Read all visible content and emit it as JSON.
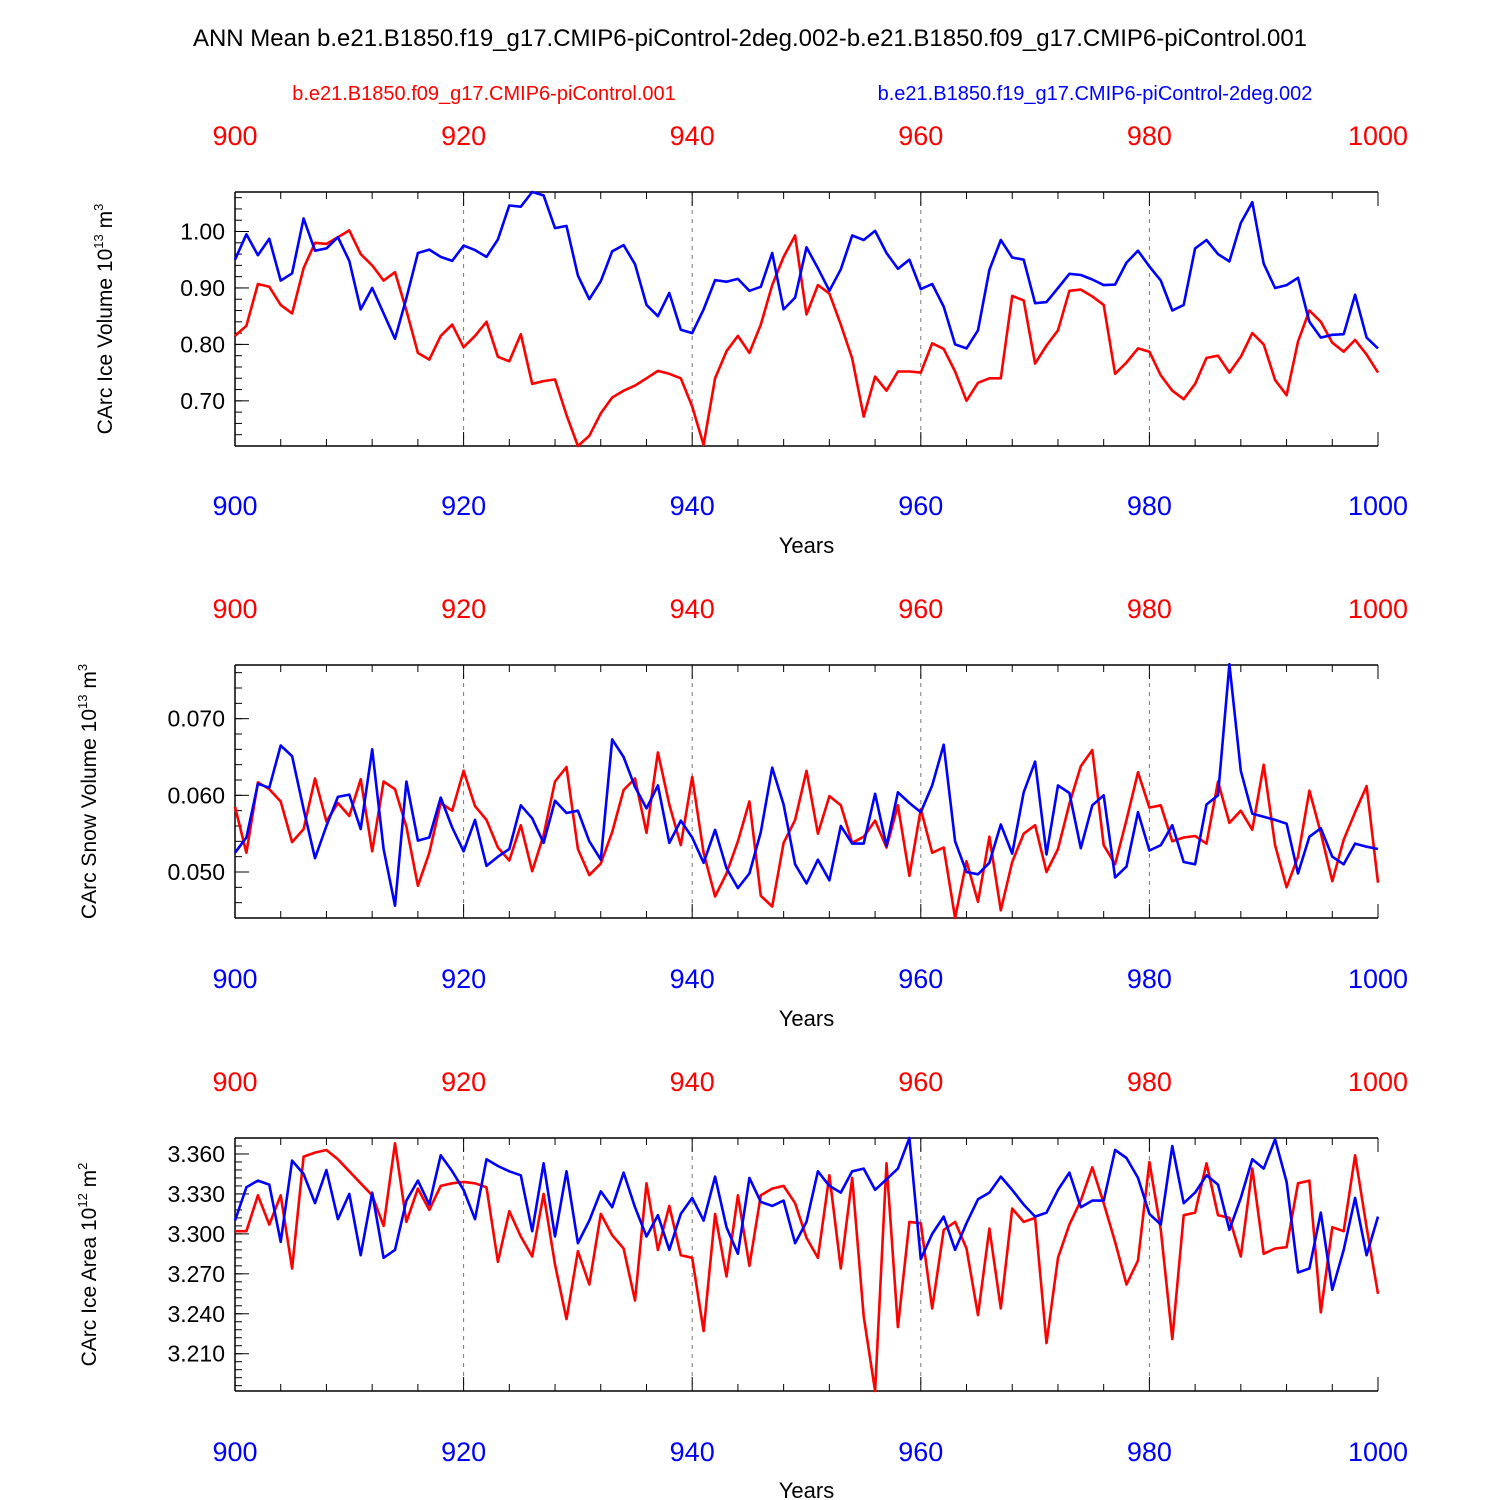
{
  "title": "ANN Mean b.e21.B1850.f19_g17.CMIP6-piControl-2deg.002-b.e21.B1850.f09_g17.CMIP6-piControl.001",
  "legend": {
    "red_label": "b.e21.B1850.f09_g17.CMIP6-piControl.001",
    "blue_label": "b.e21.B1850.f19_g17.CMIP6-piControl-2deg.002"
  },
  "colors": {
    "red": "#ff0000",
    "blue": "#0000ff",
    "axis": "#000000",
    "grid": "#777777"
  },
  "chart_data": [
    {
      "type": "line",
      "ylabel": "CArc Ice Volume 10",
      "ylabel_exp": "13",
      "ylabel_unit": " m",
      "ylabel_unit_exp": "3",
      "xlabel": "Years",
      "xlim": [
        900,
        1000
      ],
      "ylim": [
        0.62,
        1.07
      ],
      "x_ticks": [
        "900",
        "920",
        "940",
        "960",
        "980",
        "1000"
      ],
      "y_ticks": [
        "1.00",
        "0.90",
        "0.80",
        "0.70"
      ],
      "x_start": 900,
      "series": [
        {
          "name": "b.e21.B1850.f09_g17.CMIP6-piControl.001",
          "color": "red",
          "values": [
            0.815,
            0.833,
            0.907,
            0.902,
            0.87,
            0.855,
            0.935,
            0.98,
            0.978,
            0.99,
            1.002,
            0.96,
            0.94,
            0.913,
            0.928,
            0.86,
            0.785,
            0.773,
            0.815,
            0.835,
            0.795,
            0.815,
            0.84,
            0.778,
            0.77,
            0.818,
            0.73,
            0.735,
            0.738,
            0.675,
            0.62,
            0.638,
            0.678,
            0.706,
            0.718,
            0.727,
            0.74,
            0.753,
            0.748,
            0.74,
            0.69,
            0.622,
            0.74,
            0.788,
            0.815,
            0.785,
            0.835,
            0.905,
            0.955,
            0.993,
            0.853,
            0.905,
            0.89,
            0.835,
            0.775,
            0.672,
            0.743,
            0.718,
            0.752,
            0.752,
            0.75,
            0.802,
            0.792,
            0.752,
            0.7,
            0.732,
            0.74,
            0.74,
            0.886,
            0.878,
            0.766,
            0.798,
            0.825,
            0.895,
            0.897,
            0.885,
            0.87,
            0.748,
            0.768,
            0.793,
            0.787,
            0.745,
            0.718,
            0.703,
            0.73,
            0.776,
            0.78,
            0.75,
            0.778,
            0.82,
            0.8,
            0.737,
            0.71,
            0.805,
            0.86,
            0.84,
            0.803,
            0.787,
            0.808,
            0.782,
            0.75
          ]
        },
        {
          "name": "b.e21.B1850.f19_g17.CMIP6-piControl-2deg.002",
          "color": "blue",
          "values": [
            0.95,
            0.995,
            0.958,
            0.987,
            0.913,
            0.926,
            1.023,
            0.966,
            0.97,
            0.99,
            0.948,
            0.862,
            0.9,
            0.855,
            0.81,
            0.882,
            0.962,
            0.968,
            0.955,
            0.948,
            0.975,
            0.967,
            0.955,
            0.986,
            1.046,
            1.044,
            1.07,
            1.064,
            1.006,
            1.01,
            0.922,
            0.88,
            0.912,
            0.965,
            0.976,
            0.942,
            0.87,
            0.85,
            0.891,
            0.826,
            0.82,
            0.862,
            0.914,
            0.911,
            0.916,
            0.895,
            0.902,
            0.962,
            0.862,
            0.883,
            0.972,
            0.935,
            0.895,
            0.933,
            0.993,
            0.985,
            1.001,
            0.962,
            0.934,
            0.95,
            0.898,
            0.907,
            0.867,
            0.8,
            0.793,
            0.825,
            0.932,
            0.985,
            0.954,
            0.95,
            0.873,
            0.875,
            0.9,
            0.925,
            0.923,
            0.915,
            0.905,
            0.906,
            0.945,
            0.966,
            0.938,
            0.913,
            0.86,
            0.87,
            0.97,
            0.985,
            0.96,
            0.947,
            1.015,
            1.052,
            0.943,
            0.9,
            0.905,
            0.918,
            0.84,
            0.812,
            0.817,
            0.818,
            0.888,
            0.812,
            0.793
          ]
        }
      ]
    },
    {
      "type": "line",
      "ylabel": "CArc Snow Volume 10",
      "ylabel_exp": "13",
      "ylabel_unit": " m",
      "ylabel_unit_exp": "3",
      "xlabel": "Years",
      "xlim": [
        900,
        1000
      ],
      "ylim": [
        0.044,
        0.077
      ],
      "x_ticks": [
        "900",
        "920",
        "940",
        "960",
        "980",
        "1000"
      ],
      "y_ticks": [
        "0.070",
        "0.060",
        "0.050"
      ],
      "x_start": 900,
      "series": [
        {
          "name": "b.e21.B1850.f09_g17.CMIP6-piControl.001",
          "color": "red",
          "values": [
            0.0585,
            0.0525,
            0.0617,
            0.0608,
            0.0592,
            0.0539,
            0.0556,
            0.0622,
            0.0566,
            0.059,
            0.0573,
            0.0621,
            0.0527,
            0.0618,
            0.0608,
            0.0559,
            0.0482,
            0.0525,
            0.059,
            0.058,
            0.0632,
            0.0586,
            0.0568,
            0.0532,
            0.0515,
            0.0561,
            0.0501,
            0.0548,
            0.0618,
            0.0637,
            0.053,
            0.0496,
            0.0511,
            0.0552,
            0.0607,
            0.0622,
            0.0551,
            0.0656,
            0.0588,
            0.0535,
            0.0624,
            0.0525,
            0.0468,
            0.0498,
            0.054,
            0.0592,
            0.0469,
            0.0455,
            0.0538,
            0.0568,
            0.0632,
            0.055,
            0.0599,
            0.0587,
            0.0538,
            0.0546,
            0.0567,
            0.0532,
            0.0587,
            0.0495,
            0.0582,
            0.0525,
            0.0532,
            0.044,
            0.0514,
            0.0461,
            0.0546,
            0.045,
            0.0513,
            0.055,
            0.0561,
            0.05,
            0.053,
            0.0589,
            0.0638,
            0.0659,
            0.0535,
            0.051,
            0.0568,
            0.063,
            0.0584,
            0.0587,
            0.054,
            0.0545,
            0.0547,
            0.0537,
            0.0618,
            0.0564,
            0.058,
            0.0555,
            0.064,
            0.0535,
            0.048,
            0.052,
            0.0606,
            0.0551,
            0.0488,
            0.0542,
            0.0578,
            0.0612,
            0.0486
          ]
        },
        {
          "name": "b.e21.B1850.f19_g17.CMIP6-piControl-2deg.002",
          "color": "blue",
          "values": [
            0.0525,
            0.0545,
            0.0615,
            0.061,
            0.0665,
            0.0651,
            0.0582,
            0.0518,
            0.056,
            0.0598,
            0.0601,
            0.0556,
            0.066,
            0.053,
            0.0456,
            0.0618,
            0.0541,
            0.0545,
            0.0597,
            0.0558,
            0.0527,
            0.0568,
            0.0508,
            0.052,
            0.053,
            0.0587,
            0.057,
            0.0538,
            0.0593,
            0.0577,
            0.058,
            0.054,
            0.0516,
            0.0673,
            0.065,
            0.0611,
            0.0583,
            0.0613,
            0.0538,
            0.0567,
            0.0545,
            0.0512,
            0.0555,
            0.0505,
            0.0479,
            0.0498,
            0.0552,
            0.0636,
            0.0588,
            0.051,
            0.0485,
            0.0516,
            0.0489,
            0.056,
            0.0537,
            0.0537,
            0.0602,
            0.0534,
            0.0604,
            0.059,
            0.0578,
            0.0613,
            0.0666,
            0.054,
            0.05,
            0.0497,
            0.0512,
            0.0562,
            0.0524,
            0.0604,
            0.0644,
            0.0523,
            0.0613,
            0.0603,
            0.0531,
            0.0587,
            0.06,
            0.0493,
            0.0507,
            0.0578,
            0.0528,
            0.0535,
            0.0561,
            0.0513,
            0.051,
            0.0588,
            0.06,
            0.0771,
            0.0632,
            0.0576,
            0.0572,
            0.0568,
            0.0563,
            0.0498,
            0.0546,
            0.0557,
            0.052,
            0.051,
            0.0537,
            0.0533,
            0.053
          ]
        }
      ]
    },
    {
      "type": "line",
      "ylabel": "CArc Ice Area 10",
      "ylabel_exp": "12",
      "ylabel_unit": " m",
      "ylabel_unit_exp": "2",
      "xlabel": "Years",
      "xlim": [
        900,
        1000
      ],
      "ylim": [
        3.182,
        3.372
      ],
      "x_ticks": [
        "900",
        "920",
        "940",
        "960",
        "980",
        "1000"
      ],
      "y_ticks": [
        "3.360",
        "3.330",
        "3.300",
        "3.270",
        "3.240",
        "3.210"
      ],
      "x_start": 900,
      "series": [
        {
          "name": "b.e21.B1850.f09_g17.CMIP6-piControl.001",
          "color": "red",
          "values": [
            3.302,
            3.302,
            3.329,
            3.307,
            3.329,
            3.274,
            3.358,
            3.361,
            3.363,
            3.356,
            3.347,
            3.338,
            3.329,
            3.306,
            3.368,
            3.309,
            3.334,
            3.318,
            3.336,
            3.338,
            3.339,
            3.338,
            3.335,
            3.279,
            3.317,
            3.298,
            3.283,
            3.33,
            3.277,
            3.236,
            3.287,
            3.262,
            3.315,
            3.299,
            3.289,
            3.25,
            3.338,
            3.288,
            3.321,
            3.284,
            3.282,
            3.227,
            3.315,
            3.268,
            3.329,
            3.276,
            3.329,
            3.334,
            3.336,
            3.323,
            3.297,
            3.282,
            3.344,
            3.274,
            3.342,
            3.238,
            3.182,
            3.353,
            3.23,
            3.309,
            3.308,
            3.244,
            3.303,
            3.309,
            3.289,
            3.239,
            3.304,
            3.244,
            3.319,
            3.309,
            3.312,
            3.218,
            3.282,
            3.307,
            3.325,
            3.35,
            3.323,
            3.294,
            3.262,
            3.28,
            3.354,
            3.303,
            3.221,
            3.314,
            3.316,
            3.353,
            3.314,
            3.312,
            3.283,
            3.349,
            3.285,
            3.289,
            3.29,
            3.338,
            3.34,
            3.241,
            3.305,
            3.302,
            3.359,
            3.305,
            3.255
          ]
        },
        {
          "name": "b.e21.B1850.f19_g17.CMIP6-piControl-2deg.002",
          "color": "blue",
          "values": [
            3.31,
            3.335,
            3.34,
            3.337,
            3.294,
            3.355,
            3.345,
            3.323,
            3.348,
            3.311,
            3.33,
            3.284,
            3.331,
            3.282,
            3.288,
            3.325,
            3.34,
            3.322,
            3.359,
            3.347,
            3.333,
            3.311,
            3.356,
            3.351,
            3.347,
            3.344,
            3.302,
            3.353,
            3.298,
            3.347,
            3.293,
            3.31,
            3.332,
            3.32,
            3.346,
            3.32,
            3.298,
            3.314,
            3.288,
            3.315,
            3.327,
            3.31,
            3.343,
            3.305,
            3.285,
            3.342,
            3.324,
            3.321,
            3.325,
            3.293,
            3.309,
            3.347,
            3.336,
            3.331,
            3.347,
            3.349,
            3.333,
            3.341,
            3.349,
            3.372,
            3.281,
            3.3,
            3.313,
            3.288,
            3.308,
            3.326,
            3.331,
            3.343,
            3.333,
            3.322,
            3.313,
            3.316,
            3.333,
            3.346,
            3.32,
            3.325,
            3.325,
            3.363,
            3.357,
            3.342,
            3.315,
            3.307,
            3.366,
            3.323,
            3.331,
            3.344,
            3.337,
            3.303,
            3.327,
            3.356,
            3.349,
            3.371,
            3.339,
            3.271,
            3.274,
            3.316,
            3.258,
            3.288,
            3.327,
            3.284,
            3.313
          ]
        }
      ]
    }
  ]
}
